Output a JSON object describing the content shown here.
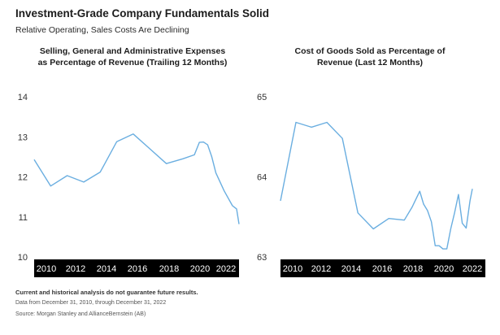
{
  "header": {
    "title": "Investment-Grade Company Fundamentals Solid",
    "subtitle": "Relative Operating, Sales Costs Are Declining"
  },
  "footer": {
    "disclaimer": "Current and historical analysis do not guarantee future results.",
    "data_range": "Data from December 31, 2010, through December 31, 2022",
    "source": "Source: Morgan Stanley and AllianceBernstein (AB)"
  },
  "colors": {
    "line": "#6aaee0",
    "axis_band": "#000000"
  },
  "chart_data": [
    {
      "type": "line",
      "title_lines": [
        "Selling, General and Administrative Expenses",
        "as Percentage of Revenue (Trailing 12 Months)"
      ],
      "xlim": [
        2010,
        2022.4
      ],
      "ylim": [
        10,
        14
      ],
      "yticks": [
        10,
        11,
        12,
        13,
        14
      ],
      "xticks": [
        2010,
        2012,
        2014,
        2016,
        2018,
        2020,
        2022
      ],
      "grid": false,
      "series": [
        {
          "x": [
            2010,
            2011,
            2012,
            2013,
            2014,
            2015,
            2016,
            2017,
            2018,
            2019,
            2019.7,
            2020,
            2020.25,
            2020.5,
            2020.75,
            2021,
            2021.5,
            2022,
            2022.25,
            2022.4
          ],
          "y": [
            12.43,
            11.77,
            12.03,
            11.87,
            12.12,
            12.88,
            13.07,
            12.7,
            12.33,
            12.45,
            12.55,
            12.86,
            12.87,
            12.8,
            12.5,
            12.1,
            11.65,
            11.28,
            11.2,
            10.82
          ]
        }
      ]
    },
    {
      "type": "line",
      "title_lines": [
        "Cost of Goods Sold as Percentage of",
        "Revenue (Last 12 Months)"
      ],
      "xlim": [
        2010,
        2022.4
      ],
      "ylim": [
        63,
        65
      ],
      "yticks": [
        63,
        64,
        65
      ],
      "xticks": [
        2010,
        2012,
        2014,
        2016,
        2018,
        2020,
        2022
      ],
      "grid": false,
      "series": [
        {
          "x": [
            2010,
            2011,
            2012,
            2013,
            2014,
            2015,
            2016,
            2017,
            2018,
            2018.5,
            2019,
            2019.25,
            2019.5,
            2019.75,
            2020,
            2020.25,
            2020.5,
            2020.75,
            2021,
            2021.25,
            2021.5,
            2021.75,
            2022,
            2022.25,
            2022.4
          ],
          "y": [
            63.7,
            64.68,
            64.62,
            64.68,
            64.48,
            63.55,
            63.35,
            63.48,
            63.46,
            63.62,
            63.82,
            63.66,
            63.58,
            63.44,
            63.14,
            63.14,
            63.1,
            63.1,
            63.35,
            63.55,
            63.78,
            63.42,
            63.36,
            63.7,
            63.85
          ]
        }
      ]
    }
  ]
}
